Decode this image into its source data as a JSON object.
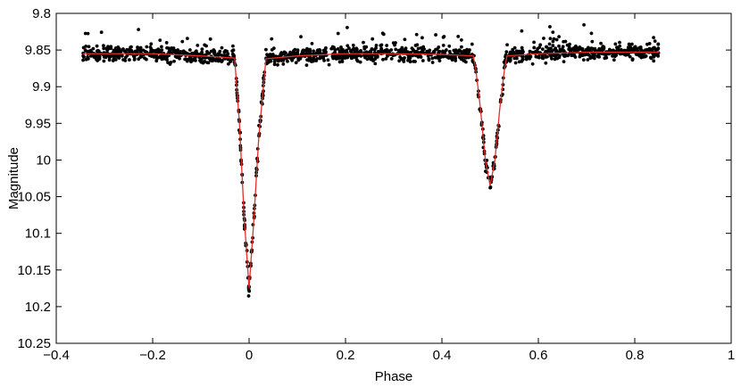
{
  "chart_data": {
    "type": "scatter",
    "title": "",
    "xlabel": "Phase",
    "ylabel": "Magnitude",
    "xlim": [
      -0.4,
      1.0
    ],
    "ylim": [
      9.8,
      10.25
    ],
    "y_inverted": true,
    "grid": false,
    "xticks": [
      -0.4,
      -0.2,
      0,
      0.2,
      0.4,
      0.6,
      0.8,
      1
    ],
    "xtick_labels": [
      "−0.4",
      "−0.2",
      "0",
      "0.2",
      "0.4",
      "0.6",
      "0.8",
      "1"
    ],
    "yticks": [
      9.8,
      9.85,
      9.9,
      9.95,
      10,
      10.05,
      10.1,
      10.15,
      10.2,
      10.25
    ],
    "ytick_labels": [
      "9.8",
      "9.85",
      "9.9",
      "9.95",
      "10",
      "10.05",
      "10.1",
      "10.15",
      "10.2",
      "10.25"
    ],
    "series": [
      {
        "kind": "points",
        "color": "#000000",
        "phase_range": [
          -0.345,
          0.85
        ],
        "approx_point_count": 1600,
        "baseline_magnitude": 9.855,
        "scatter_sd": 0.007,
        "primary_eclipse": {
          "center_phase": 0.0,
          "min_magnitude": 10.175,
          "ingress_start": -0.03,
          "egress_end": 0.035
        },
        "secondary_eclipse": {
          "center_phase": 0.5,
          "min_magnitude": 10.035,
          "ingress_start": 0.465,
          "egress_end": 0.535
        }
      },
      {
        "kind": "model-curve",
        "color": "#e0302a",
        "x": [
          -0.345,
          -0.2,
          -0.1,
          -0.03,
          -0.02,
          -0.01,
          0.0,
          0.01,
          0.02,
          0.035,
          0.1,
          0.2,
          0.3,
          0.4,
          0.465,
          0.47,
          0.48,
          0.49,
          0.5,
          0.51,
          0.52,
          0.53,
          0.535,
          0.6,
          0.7,
          0.8,
          0.85
        ],
        "y": [
          9.855,
          9.855,
          9.858,
          9.861,
          9.95,
          10.08,
          10.175,
          10.08,
          9.97,
          9.862,
          9.858,
          9.855,
          9.855,
          9.856,
          9.858,
          9.875,
          9.93,
          10.0,
          10.035,
          10.0,
          9.93,
          9.875,
          9.858,
          9.855,
          9.853,
          9.853,
          9.853
        ]
      }
    ]
  }
}
